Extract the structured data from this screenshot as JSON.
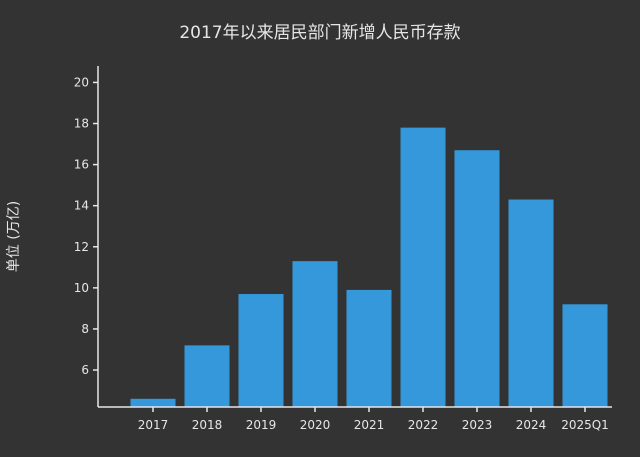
{
  "chart_data": {
    "type": "bar",
    "title": "2017年以来居民部门新增人民币存款",
    "xlabel": "",
    "ylabel": "单位 (万亿)",
    "categories": [
      "2017",
      "2018",
      "2019",
      "2020",
      "2021",
      "2022",
      "2023",
      "2024",
      "2025Q1"
    ],
    "values": [
      4.6,
      7.2,
      9.7,
      11.3,
      9.9,
      17.8,
      16.7,
      14.3,
      9.2
    ],
    "ylim": [
      4.2,
      20.8
    ],
    "yticks": [
      6,
      8,
      10,
      12,
      14,
      16,
      18,
      20
    ],
    "grid": false,
    "bar_color": "#3498db",
    "background": "#333333"
  }
}
